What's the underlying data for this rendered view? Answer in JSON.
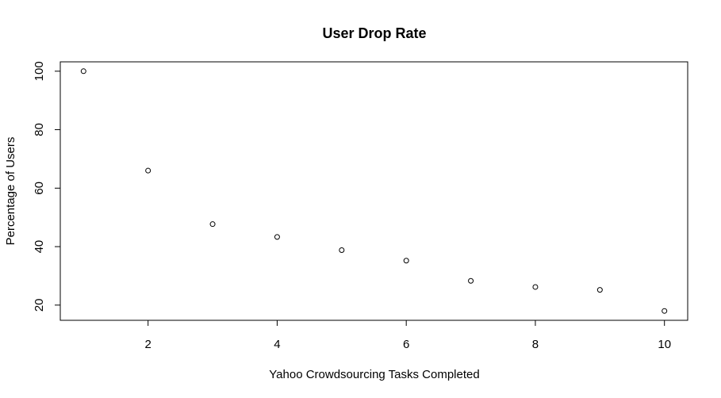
{
  "chart_data": {
    "type": "scatter",
    "title": "User Drop Rate",
    "xlabel": "Yahoo Crowdsourcing Tasks Completed",
    "ylabel": "Percentage of Users",
    "x": [
      1,
      2,
      3,
      4,
      5,
      6,
      7,
      8,
      9,
      10
    ],
    "y": [
      100,
      66,
      47.7,
      43.3,
      38.8,
      35.2,
      28.3,
      26.2,
      25.2,
      18
    ],
    "xticks": [
      2,
      4,
      6,
      8,
      10
    ],
    "yticks": [
      20,
      40,
      60,
      80,
      100
    ],
    "xlim": [
      0.64,
      10.36
    ],
    "ylim": [
      14.8,
      103.2
    ],
    "grid": false,
    "marker": "open-circle",
    "colors": {
      "points": "#000000",
      "axes": "#000000",
      "background": "#ffffff"
    }
  }
}
